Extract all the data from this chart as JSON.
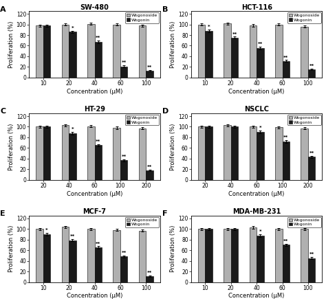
{
  "panels": [
    {
      "label": "A",
      "title": "SW-480",
      "x_ticks": [
        10,
        20,
        40,
        60,
        100
      ],
      "xlabel": "Concentration (μM)",
      "ylabel": "Proliferation (%)",
      "wogonoside": [
        98,
        100,
        101,
        100,
        98
      ],
      "wogonin": [
        98,
        86,
        67,
        21,
        13
      ],
      "wogonin_sig": [
        "",
        "*",
        "**",
        "**",
        "**"
      ],
      "wogonoside_sig": [
        "",
        "",
        "",
        "",
        ""
      ],
      "wogonoside_err": [
        2.0,
        2.0,
        2.0,
        2.0,
        2.0
      ],
      "wogonin_err": [
        2.0,
        2.5,
        2.5,
        2.0,
        1.5
      ],
      "ylim": [
        0,
        125
      ],
      "yticks": [
        0,
        20,
        40,
        60,
        80,
        100,
        120
      ]
    },
    {
      "label": "B",
      "title": "HCT-116",
      "x_ticks": [
        10,
        20,
        40,
        60,
        100
      ],
      "xlabel": "Concentration (μM)",
      "ylabel": "Proliferation (%)",
      "wogonoside": [
        100,
        102,
        98,
        100,
        96
      ],
      "wogonin": [
        88,
        75,
        56,
        31,
        15
      ],
      "wogonin_sig": [
        "*",
        "**",
        "**",
        "**",
        "**"
      ],
      "wogonoside_sig": [
        "",
        "",
        "",
        "",
        ""
      ],
      "wogonoside_err": [
        2.0,
        2.0,
        2.5,
        2.0,
        2.0
      ],
      "wogonin_err": [
        2.5,
        2.0,
        2.5,
        2.0,
        1.5
      ],
      "ylim": [
        0,
        125
      ],
      "yticks": [
        0,
        20,
        40,
        60,
        80,
        100,
        120
      ]
    },
    {
      "label": "C",
      "title": "HT-29",
      "x_ticks": [
        20,
        40,
        60,
        100,
        200
      ],
      "xlabel": "Concentration (μM)",
      "ylabel": "Proliferation (%)",
      "wogonoside": [
        100,
        103,
        101,
        98,
        97
      ],
      "wogonin": [
        100,
        88,
        65,
        37,
        18
      ],
      "wogonin_sig": [
        "",
        "*",
        "**",
        "**",
        "**"
      ],
      "wogonoside_sig": [
        "",
        "",
        "",
        "",
        ""
      ],
      "wogonoside_err": [
        2.0,
        2.0,
        2.0,
        2.0,
        2.0
      ],
      "wogonin_err": [
        2.0,
        2.5,
        2.5,
        2.0,
        1.5
      ],
      "ylim": [
        0,
        125
      ],
      "yticks": [
        0,
        20,
        40,
        60,
        80,
        100,
        120
      ]
    },
    {
      "label": "D",
      "title": "NSCLC",
      "x_ticks": [
        20,
        40,
        60,
        100,
        200
      ],
      "xlabel": "Concentration (μM)",
      "ylabel": "Proliferation (%)",
      "wogonoside": [
        100,
        103,
        100,
        99,
        97
      ],
      "wogonin": [
        100,
        100,
        90,
        72,
        43
      ],
      "wogonin_sig": [
        "",
        "",
        "*",
        "**",
        "**"
      ],
      "wogonoside_sig": [
        "",
        "",
        "",
        "",
        ""
      ],
      "wogonoside_err": [
        2.0,
        2.0,
        2.0,
        2.0,
        2.0
      ],
      "wogonin_err": [
        2.0,
        2.0,
        2.5,
        2.5,
        2.0
      ],
      "ylim": [
        0,
        125
      ],
      "yticks": [
        0,
        20,
        40,
        60,
        80,
        100,
        120
      ]
    },
    {
      "label": "E",
      "title": "MCF-7",
      "x_ticks": [
        10,
        20,
        40,
        60,
        100
      ],
      "xlabel": "Concentration (μM)",
      "ylabel": "Proliferation (%)",
      "wogonoside": [
        100,
        104,
        100,
        98,
        97
      ],
      "wogonin": [
        90,
        79,
        65,
        48,
        11
      ],
      "wogonin_sig": [
        "*",
        "**",
        "**",
        "**",
        "**"
      ],
      "wogonoside_sig": [
        "",
        "",
        "",
        "",
        ""
      ],
      "wogonoside_err": [
        2.0,
        2.0,
        2.0,
        2.0,
        2.0
      ],
      "wogonin_err": [
        2.5,
        2.0,
        2.5,
        2.5,
        1.5
      ],
      "ylim": [
        0,
        125
      ],
      "yticks": [
        0,
        20,
        40,
        60,
        80,
        100,
        120
      ]
    },
    {
      "label": "F",
      "title": "MDA-MB-231",
      "x_ticks": [
        10,
        20,
        40,
        60,
        100
      ],
      "xlabel": "Concentration (μM)",
      "ylabel": "Proliferation (%)",
      "wogonoside": [
        100,
        100,
        103,
        100,
        100
      ],
      "wogonin": [
        100,
        100,
        88,
        70,
        45
      ],
      "wogonin_sig": [
        "",
        "",
        "*",
        "**",
        "**"
      ],
      "wogonoside_sig": [
        "",
        "",
        "",
        "",
        ""
      ],
      "wogonoside_err": [
        2.0,
        2.0,
        2.0,
        2.0,
        2.0
      ],
      "wogonin_err": [
        2.0,
        2.0,
        2.5,
        2.5,
        2.0
      ],
      "ylim": [
        0,
        125
      ],
      "yticks": [
        0,
        20,
        40,
        60,
        80,
        100,
        120
      ]
    }
  ],
  "color_wogonoside": "#b0b0b0",
  "color_wogonin": "#1a1a1a",
  "bar_width": 0.28,
  "error_cap": 1.5,
  "legend_labels": [
    "Wogonoside",
    "Wogonin"
  ],
  "figsize": [
    4.74,
    4.41
  ],
  "dpi": 100
}
